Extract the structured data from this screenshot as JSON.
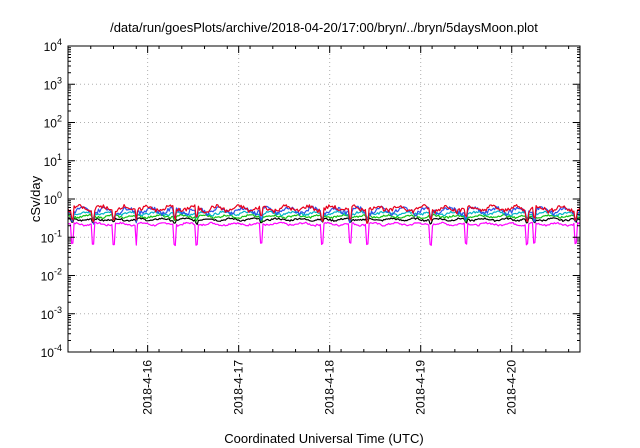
{
  "chart_data": {
    "type": "line",
    "title": "/data/run/goesPlots/archive/2018-04-20/17:00/bryn/../bryn/5daysMoon.plot",
    "xlabel": "Coordinated Universal Time (UTC)",
    "ylabel": "cSv/day",
    "yscale": "log",
    "ylim": [
      0.0001,
      10000
    ],
    "xlim": [
      "2018-04-15 03:00",
      "2018-04-20 18:00"
    ],
    "grid": true,
    "y_ticks": [
      {
        "base": "10",
        "exp": "-4",
        "value": 0.0001
      },
      {
        "base": "10",
        "exp": "-3",
        "value": 0.001
      },
      {
        "base": "10",
        "exp": "-2",
        "value": 0.01
      },
      {
        "base": "10",
        "exp": "-1",
        "value": 0.1
      },
      {
        "base": "10",
        "exp": "0",
        "value": 1
      },
      {
        "base": "10",
        "exp": "1",
        "value": 10
      },
      {
        "base": "10",
        "exp": "2",
        "value": 100
      },
      {
        "base": "10",
        "exp": "3",
        "value": 1000
      },
      {
        "base": "10",
        "exp": "4",
        "value": 10000
      }
    ],
    "x_ticks": [
      {
        "label": "2018-4-16",
        "value": "2018-04-16 00:00"
      },
      {
        "label": "2018-4-17",
        "value": "2018-04-17 00:00"
      },
      {
        "label": "2018-4-18",
        "value": "2018-04-18 00:00"
      },
      {
        "label": "2018-4-19",
        "value": "2018-04-19 00:00"
      },
      {
        "label": "2018-4-20",
        "value": "2018-04-20 00:00"
      }
    ],
    "series": [
      {
        "color": "#e8001c",
        "base": 0.56,
        "noise": 0.14,
        "dips": 0.55
      },
      {
        "color": "#2a52e8",
        "base": 0.5,
        "noise": 0.13,
        "dips": 0.6
      },
      {
        "color": "#00b5c8",
        "base": 0.42,
        "noise": 0.06,
        "dips": 0.75
      },
      {
        "color": "#10c010",
        "base": 0.35,
        "noise": 0.04,
        "dips": 0.8
      },
      {
        "color": "#000000",
        "base": 0.29,
        "noise": 0.03,
        "dips": 0.82
      },
      {
        "color": "#ff00ff",
        "base": 0.22,
        "noise": 0.025,
        "dips": 0.3
      }
    ],
    "dip_times": [
      "2018-04-15 04:00",
      "2018-04-15 09:30",
      "2018-04-15 15:00",
      "2018-04-15 21:00",
      "2018-04-16 07:00",
      "2018-04-16 13:00",
      "2018-04-17 06:00",
      "2018-04-17 22:00",
      "2018-04-18 05:30",
      "2018-04-18 10:00",
      "2018-04-19 02:30",
      "2018-04-19 12:00",
      "2018-04-20 04:00",
      "2018-04-20 06:00",
      "2018-04-20 17:00"
    ]
  }
}
